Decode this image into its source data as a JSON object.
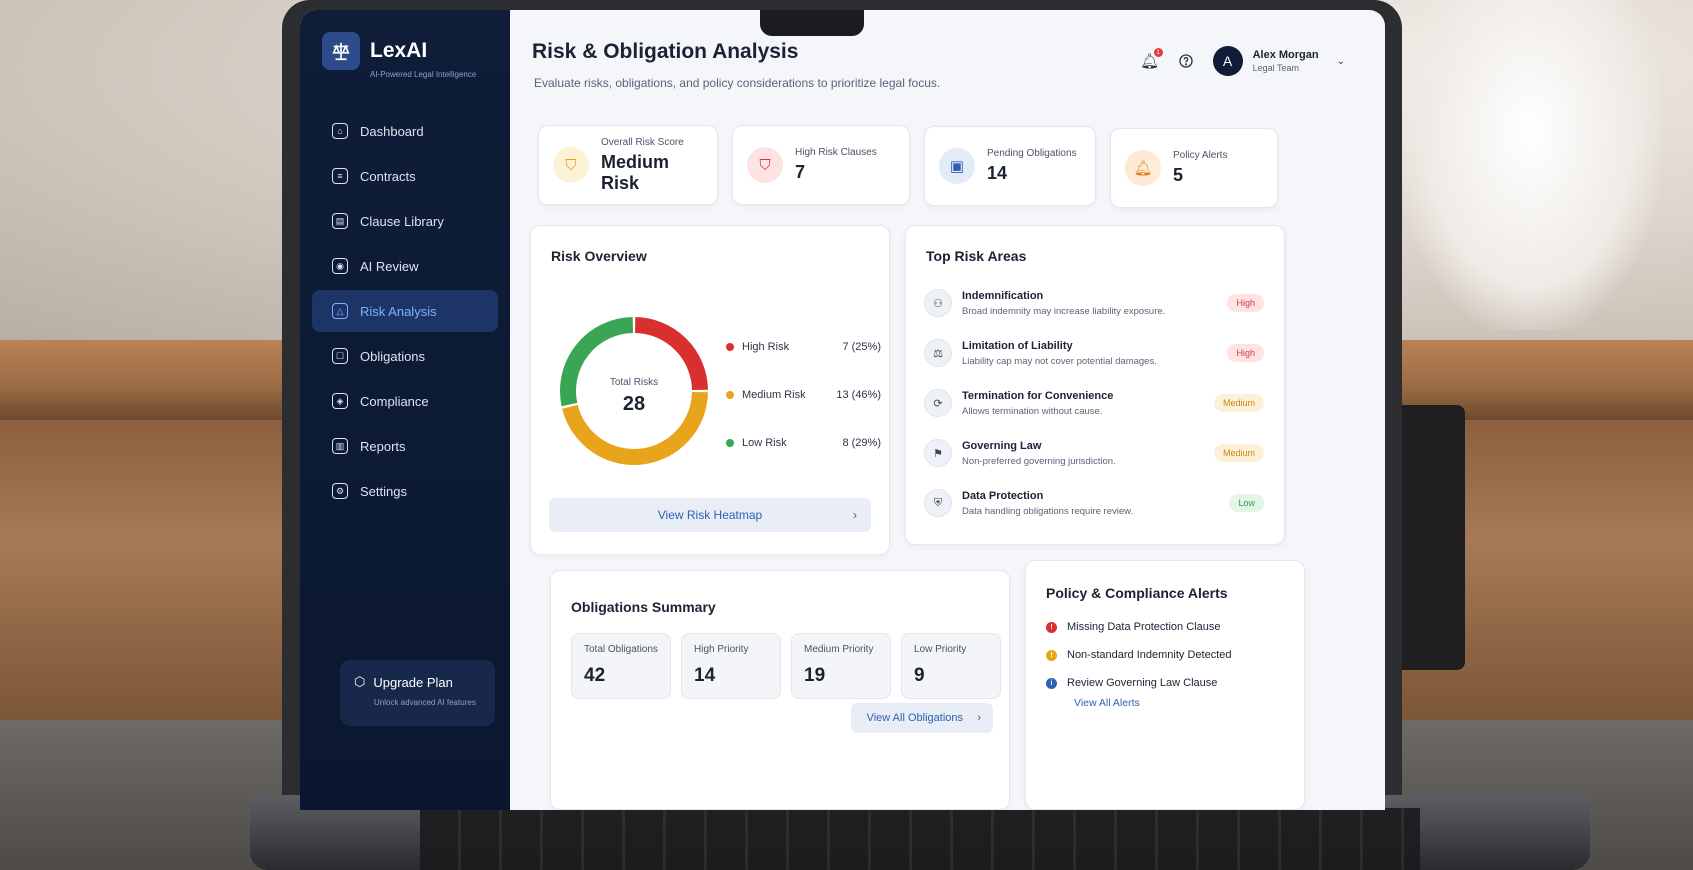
{
  "brand": {
    "name": "LexAI",
    "tagline": "AI-Powered Legal Intelligence"
  },
  "sidebar": {
    "items": [
      {
        "label": "Dashboard",
        "icon": "home-icon",
        "glyph": "⌂"
      },
      {
        "label": "Contracts",
        "icon": "document-icon",
        "glyph": "≡"
      },
      {
        "label": "Clause Library",
        "icon": "library-icon",
        "glyph": "▤"
      },
      {
        "label": "AI Review",
        "icon": "ai-review-icon",
        "glyph": "◉"
      },
      {
        "label": "Risk Analysis",
        "icon": "risk-icon",
        "glyph": "△",
        "active": true
      },
      {
        "label": "Obligations",
        "icon": "obligations-icon",
        "glyph": "☐"
      },
      {
        "label": "Compliance",
        "icon": "shield-icon",
        "glyph": "◈"
      },
      {
        "label": "Reports",
        "icon": "report-icon",
        "glyph": "▥"
      },
      {
        "label": "Settings",
        "icon": "gear-icon",
        "glyph": "⚙"
      }
    ],
    "upgrade": {
      "title": "Upgrade Plan",
      "subtitle": "Unlock advanced AI features"
    }
  },
  "header": {
    "title": "Risk & Obligation Analysis",
    "subtitle": "Evaluate risks, obligations, and policy considerations to prioritize legal focus.",
    "notification_count": "1",
    "user": {
      "initial": "A",
      "name": "Alex Morgan",
      "role": "Legal Team"
    }
  },
  "stats": [
    {
      "label": "Overall Risk Score",
      "value": "Medium Risk",
      "icon": "shield-icon",
      "color": "#e9a21a",
      "bg": "#fdf1d6"
    },
    {
      "label": "High Risk Clauses",
      "value": "7",
      "icon": "shield-alert-icon",
      "color": "#d23a3a",
      "bg": "#fde3e3"
    },
    {
      "label": "Pending Obligations",
      "value": "14",
      "icon": "clipboard-icon",
      "color": "#2f5fb3",
      "bg": "#e3ebf8"
    },
    {
      "label": "Policy Alerts",
      "value": "5",
      "icon": "bell-icon",
      "color": "#e07b1a",
      "bg": "#fdebd6"
    }
  ],
  "risk_overview": {
    "title": "Risk Overview",
    "center_label": "Total Risks",
    "total": "28",
    "segments": [
      {
        "label": "High Risk",
        "value": 7,
        "display": "7 (25%)",
        "color": "#d9302f"
      },
      {
        "label": "Medium Risk",
        "value": 13,
        "display": "13 (46%)",
        "color": "#e8a41a"
      },
      {
        "label": "Low Risk",
        "value": 8,
        "display": "8 (29%)",
        "color": "#3aa655"
      }
    ],
    "button": "View Risk Heatmap"
  },
  "top_risks": {
    "title": "Top Risk Areas",
    "items": [
      {
        "name": "Indemnification",
        "desc": "Broad indemnity may increase liability exposure.",
        "level": "High",
        "cls": "high"
      },
      {
        "name": "Limitation of Liability",
        "desc": "Liability cap may not cover potential damages.",
        "level": "High",
        "cls": "high"
      },
      {
        "name": "Termination for Convenience",
        "desc": "Allows termination without cause.",
        "level": "Medium",
        "cls": "medium"
      },
      {
        "name": "Governing Law",
        "desc": "Non-preferred governing jurisdiction.",
        "level": "Medium",
        "cls": "medium"
      },
      {
        "name": "Data Protection",
        "desc": "Data handling obligations require review.",
        "level": "Low",
        "cls": "low"
      }
    ]
  },
  "obligations": {
    "title": "Obligations Summary",
    "boxes": [
      {
        "label": "Total Obligations",
        "value": "42"
      },
      {
        "label": "High Priority",
        "value": "14"
      },
      {
        "label": "Medium Priority",
        "value": "19"
      },
      {
        "label": "Low Priority",
        "value": "9"
      }
    ],
    "button": "View All Obligations"
  },
  "alerts": {
    "title": "Policy & Compliance Alerts",
    "items": [
      {
        "text": "Missing Data Protection Clause",
        "color": "#d9302f",
        "glyph": "!"
      },
      {
        "text": "Non-standard Indemnity Detected",
        "color": "#e8a41a",
        "glyph": "!"
      },
      {
        "text": "Review Governing Law Clause",
        "color": "#2f5fb3",
        "glyph": "i"
      }
    ],
    "link": "View All Alerts"
  }
}
